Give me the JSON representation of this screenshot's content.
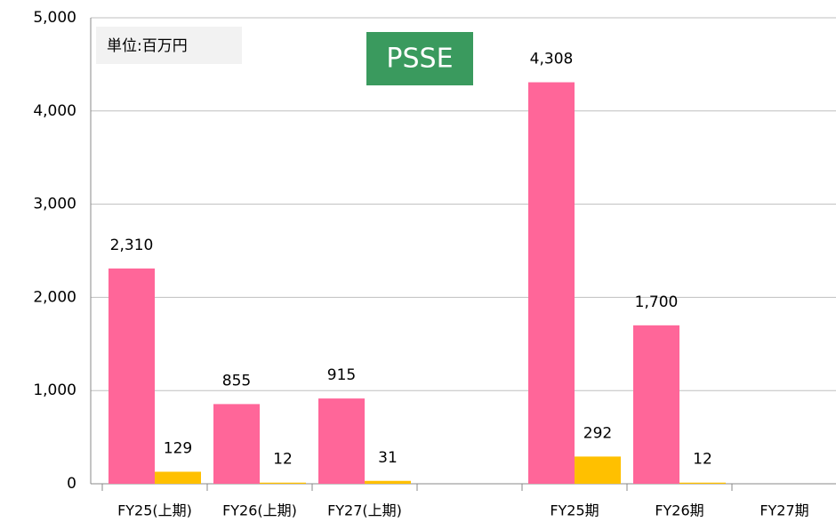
{
  "chart_data": {
    "type": "bar",
    "annotations": [
      "単位:百万円",
      "PSSE"
    ],
    "categories": [
      "FY25(上期)",
      "FY26(上期)",
      "FY27(上期)",
      null,
      "FY25期",
      "FY26期",
      "FY27期"
    ],
    "series": [
      {
        "color": "#ff6699",
        "values": [
          2310,
          855,
          915,
          null,
          4308,
          1700,
          null
        ],
        "value_labels": [
          "2,310",
          "855",
          "915",
          null,
          "4,308",
          "1,700",
          null
        ]
      },
      {
        "color": "#ffc000",
        "values": [
          129,
          12,
          31,
          null,
          292,
          12,
          null
        ]
      }
    ],
    "ylim": [
      0,
      5000
    ],
    "yticks": [
      0,
      {
        "value": 1000,
        "label": "1,000"
      },
      {
        "value": 2000,
        "label": "2,000"
      },
      {
        "value": 3000,
        "label": "3,000"
      },
      {
        "value": 4000,
        "label": "4,000"
      },
      {
        "value": 5000,
        "label": "5,000"
      }
    ],
    "grid": true
  }
}
